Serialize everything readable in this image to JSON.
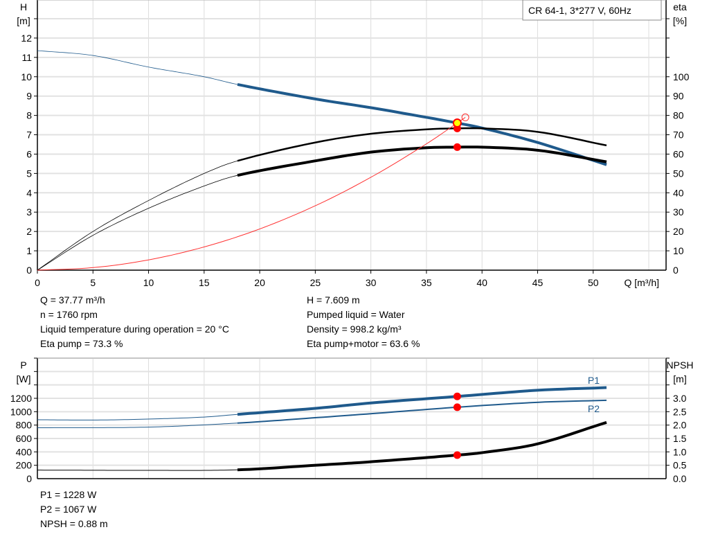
{
  "title": "CR 64-1, 3*277 V, 60Hz",
  "readout_left": [
    "Q = 37.77 m³/h",
    "n = 1760 rpm",
    "Liquid temperature during operation = 20 °C",
    "Eta pump = 73.3 %"
  ],
  "readout_right": [
    "H = 7.609 m",
    "Pumped liquid = Water",
    "Density = 998.2 kg/m³",
    "Eta pump+motor = 63.6 %"
  ],
  "readout_bottom": [
    "P1 = 1228 W",
    "P2 = 1067 W",
    "NPSH = 0.88 m"
  ],
  "colors": {
    "head": "#1f5a8c",
    "eta": "#000000",
    "system": "#ff3030",
    "duty_point": "#ff0000",
    "duty_point_head": "#ffff00",
    "power": "#1f5a8c",
    "npsh": "#000000",
    "grid": "#dddddd"
  },
  "chart_data": [
    {
      "type": "line",
      "xlabel": "Q [m³/h]",
      "y_label_lines": [
        "H",
        "[m]"
      ],
      "y2_label_lines": [
        "eta",
        "[%]"
      ],
      "xlim": [
        0,
        55
      ],
      "ylim": [
        0,
        13
      ],
      "y2lim": [
        0,
        130
      ],
      "xticks": [
        0,
        5,
        10,
        15,
        20,
        25,
        30,
        35,
        40,
        45,
        50
      ],
      "yticks": [
        0,
        1,
        2,
        3,
        4,
        5,
        6,
        7,
        8,
        9,
        10,
        11,
        12
      ],
      "y2ticks": [
        0,
        10,
        20,
        30,
        40,
        50,
        60,
        70,
        80,
        90,
        100
      ],
      "grid": true,
      "operating_range_start_q": 18,
      "series": [
        {
          "key": "head",
          "axis": "left",
          "x": [
            0,
            5,
            10,
            15,
            18,
            25,
            30,
            35,
            37.77,
            40,
            45,
            51.2
          ],
          "y": [
            11.35,
            11.1,
            10.5,
            10.0,
            9.6,
            8.85,
            8.4,
            7.9,
            7.609,
            7.35,
            6.6,
            5.45
          ]
        },
        {
          "key": "eta_pump",
          "axis": "right",
          "x": [
            0,
            5,
            10,
            15,
            18,
            25,
            30,
            35,
            37.77,
            40,
            45,
            51.2
          ],
          "y": [
            0,
            20,
            36,
            50,
            56.5,
            66,
            70.5,
            72.8,
            73.3,
            73.3,
            71.5,
            64.5
          ]
        },
        {
          "key": "eta_pump_motor",
          "axis": "right",
          "x": [
            0,
            5,
            10,
            15,
            18,
            25,
            30,
            35,
            37.77,
            40,
            45,
            51.2
          ],
          "y": [
            0,
            18,
            32,
            43.5,
            49,
            56.5,
            61,
            63.3,
            63.6,
            63.6,
            62,
            56
          ]
        },
        {
          "key": "system",
          "axis": "left",
          "x": [
            0,
            5,
            10,
            15,
            20,
            25,
            30,
            35,
            37.77
          ],
          "y": [
            0,
            0.13,
            0.53,
            1.2,
            2.13,
            3.33,
            4.8,
            6.53,
            7.609
          ]
        }
      ],
      "duty_point": {
        "q": 37.77,
        "h": 7.609,
        "eta_pump": 73.3,
        "eta_pump_motor": 63.6
      },
      "requested_point": {
        "q": 38.5,
        "h": 7.9
      }
    },
    {
      "type": "line",
      "y_label_lines": [
        "P",
        "[W]"
      ],
      "y2_label_lines": [
        "NPSH",
        "[m]"
      ],
      "xlim": [
        0,
        55
      ],
      "ylim": [
        0,
        1800
      ],
      "y2lim": [
        0,
        4.5
      ],
      "yticks": [
        0,
        200,
        400,
        600,
        800,
        1000,
        1200
      ],
      "y2ticks": [
        0.0,
        0.5,
        1.0,
        1.5,
        2.0,
        2.5,
        3.0
      ],
      "y2tick_labels": [
        "0.0",
        "0.5",
        "1.0",
        "1.5",
        "2.0",
        "2.5",
        "3.0"
      ],
      "grid": true,
      "series": [
        {
          "key": "P1",
          "name": "P1",
          "axis": "left",
          "x": [
            0,
            5,
            10,
            15,
            18,
            25,
            30,
            37.77,
            45,
            51.2
          ],
          "y": [
            880,
            875,
            890,
            920,
            960,
            1050,
            1130,
            1228,
            1320,
            1360
          ]
        },
        {
          "key": "P2",
          "name": "P2",
          "axis": "left",
          "x": [
            0,
            10,
            18,
            25,
            30,
            37.77,
            45,
            51.2
          ],
          "y": [
            760,
            770,
            830,
            910,
            970,
            1067,
            1140,
            1170
          ]
        },
        {
          "key": "NPSH",
          "axis": "right",
          "x": [
            0,
            10,
            18,
            25,
            30,
            37.77,
            40,
            45,
            51.2
          ],
          "y": [
            0.32,
            0.31,
            0.33,
            0.5,
            0.63,
            0.88,
            0.97,
            1.3,
            2.1
          ]
        }
      ],
      "duty_point": {
        "q": 37.77,
        "p1": 1228,
        "p2": 1067,
        "npsh": 0.88
      }
    }
  ]
}
